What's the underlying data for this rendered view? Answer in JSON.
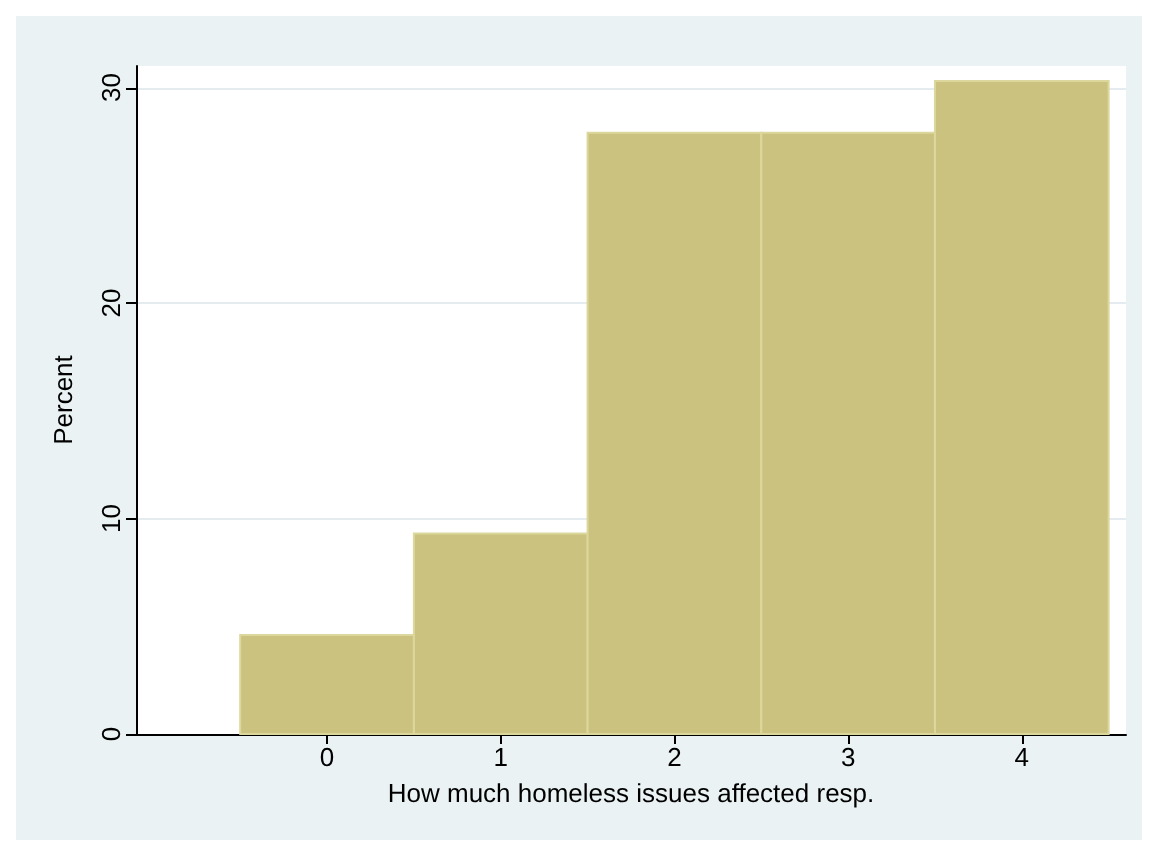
{
  "chart_data": {
    "type": "histogram",
    "xlabel": "How much homeless issues affected resp.",
    "ylabel": "Percent",
    "bins": [
      -0.5,
      0.5,
      1.5,
      2.5,
      3.5,
      4.5
    ],
    "values": [
      4.6,
      9.3,
      27.9,
      27.9,
      30.3
    ],
    "color": "#cac27e",
    "xlim": [
      -1.1,
      4.6
    ],
    "xticks": [
      0,
      1,
      2,
      3,
      4
    ],
    "ylim": [
      0,
      31
    ],
    "yticks": [
      0,
      10,
      20,
      30
    ],
    "grid": "y"
  }
}
